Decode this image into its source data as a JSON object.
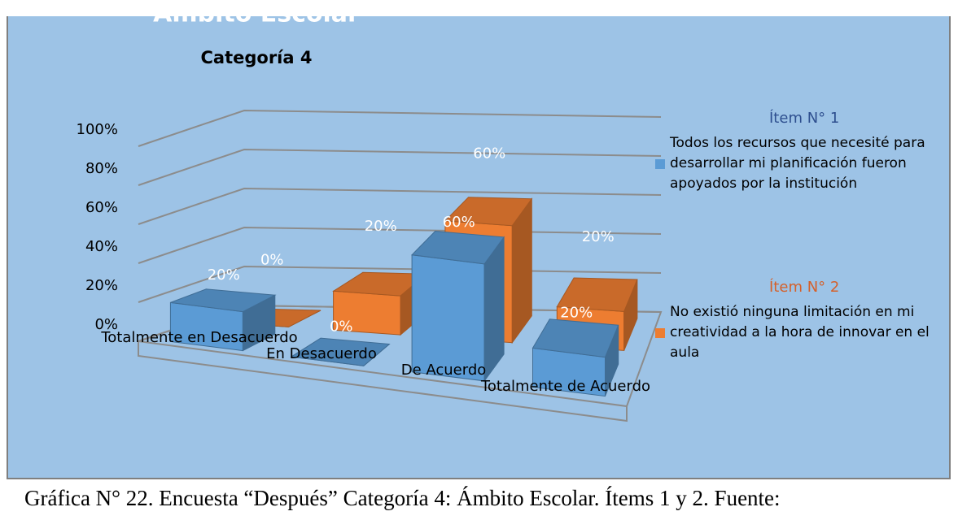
{
  "chart_data": {
    "type": "bar3d",
    "title": "Ámbito Escolar",
    "subtitle": "Categoría 4",
    "categories": [
      "Totalmente en Desacuerdo",
      "En Desacuerdo",
      "De Acuerdo",
      "Totalmente de Acuerdo"
    ],
    "series": [
      {
        "name": "Todos los recursos que necesité para desarrollar mi planificación fueron apoyados por la institución",
        "header": "Ítem N° 1",
        "color": "#5b9bd5",
        "values": [
          20,
          0,
          60,
          20
        ],
        "value_labels": [
          "20%",
          "0%",
          "60%",
          "20%"
        ]
      },
      {
        "name": "No existió ninguna limitación en mi creatividad a la hora de innovar en el aula",
        "header": "Ítem N° 2",
        "color": "#ed7d31",
        "values": [
          0,
          20,
          60,
          20
        ],
        "value_labels": [
          "0%",
          "20%",
          "60%",
          "20%"
        ]
      }
    ],
    "ylim": [
      0,
      100
    ],
    "yticks": [
      {
        "value": 0,
        "label": "0%"
      },
      {
        "value": 20,
        "label": "20%"
      },
      {
        "value": 40,
        "label": "40%"
      },
      {
        "value": 60,
        "label": "60%"
      },
      {
        "value": 80,
        "label": "80%"
      },
      {
        "value": 100,
        "label": "100%"
      }
    ],
    "grid": true,
    "legend": "right",
    "caption": "Gráfica N° 22. Encuesta “Después” Categoría 4: Ámbito Escolar. Ítems 1 y 2. Fuente:"
  }
}
